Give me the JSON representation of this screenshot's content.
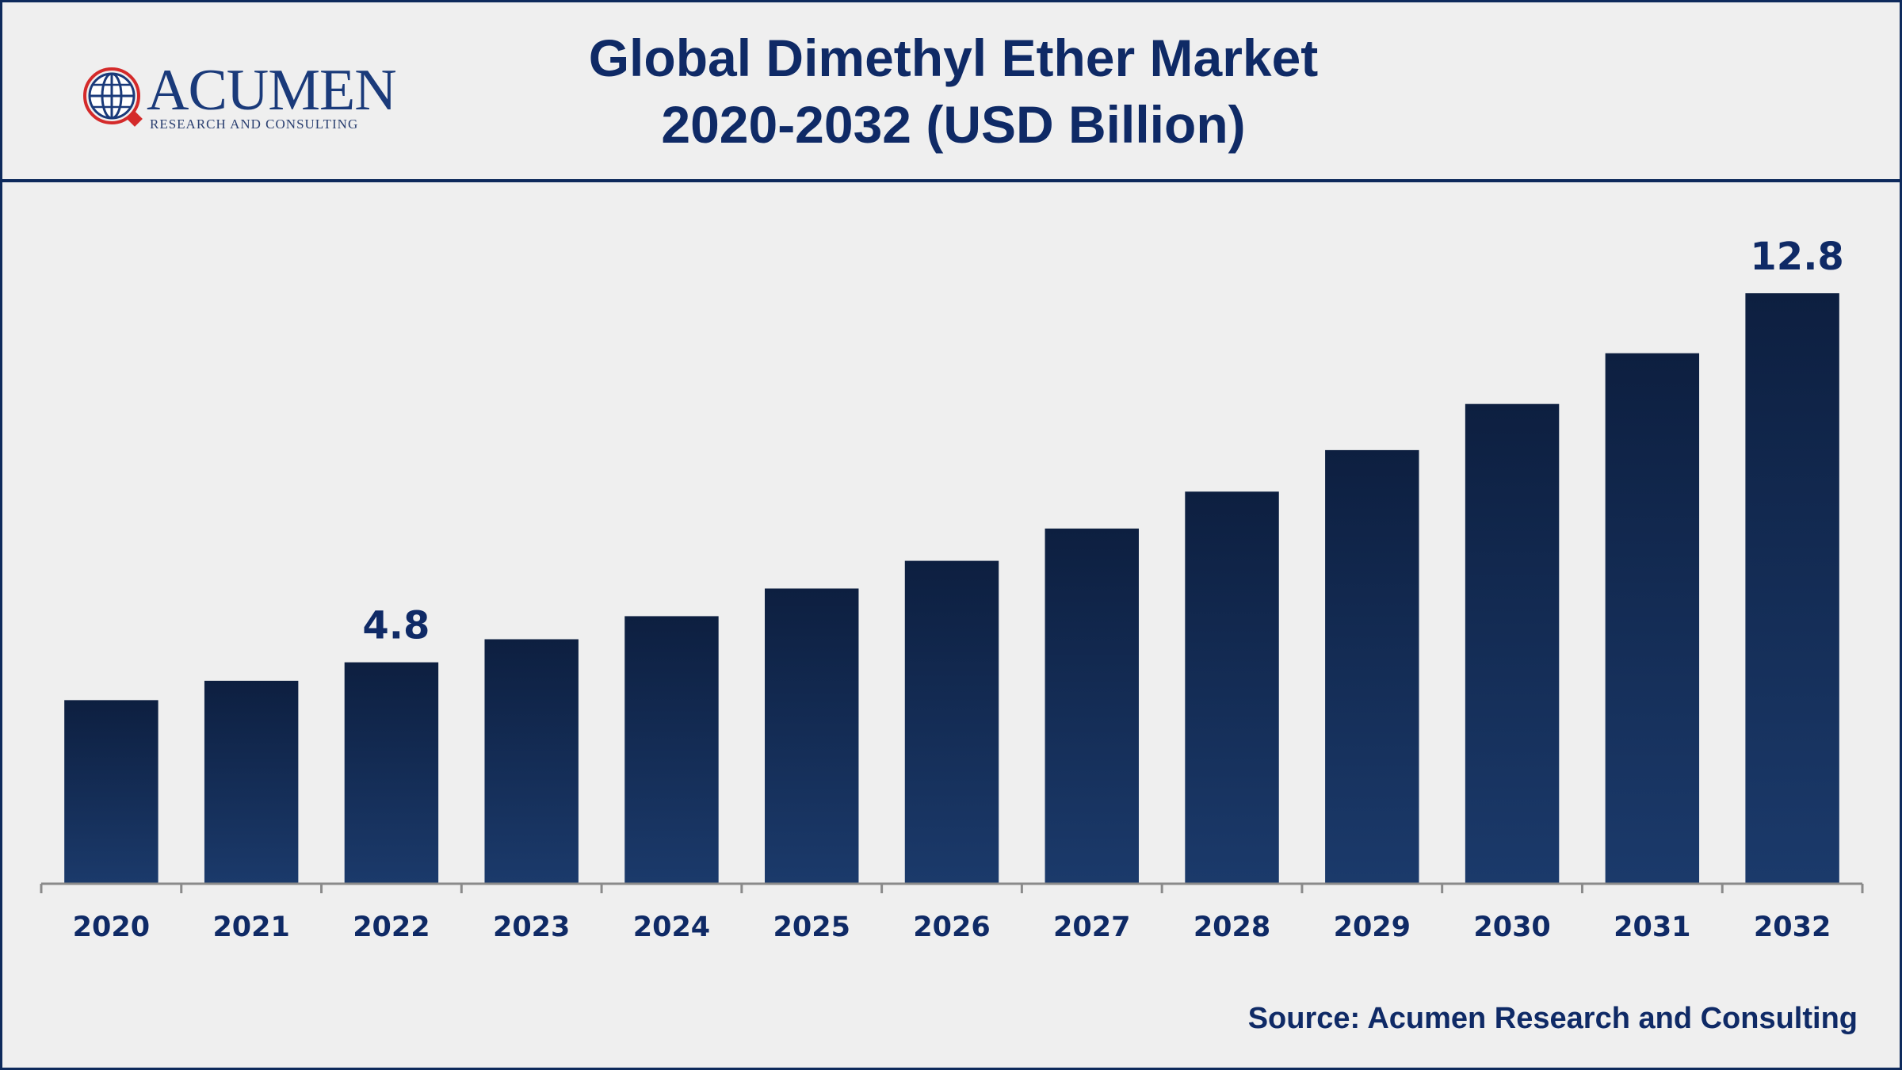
{
  "header": {
    "title_line1": "Global Dimethyl Ether Market",
    "title_line2": "2020-2032 (USD Billion)",
    "logo_name": "ACUMEN",
    "logo_tagline": "RESEARCH AND CONSULTING"
  },
  "footer": {
    "source": "Source: Acumen Research and Consulting"
  },
  "colors": {
    "brand_navy": "#0f2a66",
    "bar_top": "#0d1f40",
    "bar_bottom": "#1b3a6b",
    "logo_red": "#d42a2a"
  },
  "chart_data": {
    "type": "bar",
    "title": "Global Dimethyl Ether Market 2020-2032 (USD Billion)",
    "xlabel": "",
    "ylabel": "",
    "categories": [
      "2020",
      "2021",
      "2022",
      "2023",
      "2024",
      "2025",
      "2026",
      "2027",
      "2028",
      "2029",
      "2030",
      "2031",
      "2032"
    ],
    "values": [
      3.98,
      4.4,
      4.8,
      5.3,
      5.8,
      6.4,
      7.0,
      7.7,
      8.5,
      9.4,
      10.4,
      11.5,
      12.8
    ],
    "data_labels": [
      {
        "category": "2022",
        "text": "4.8"
      },
      {
        "category": "2032",
        "text": "12.8"
      }
    ],
    "ylim": [
      0,
      14.28
    ],
    "grid": false,
    "legend": "none"
  }
}
